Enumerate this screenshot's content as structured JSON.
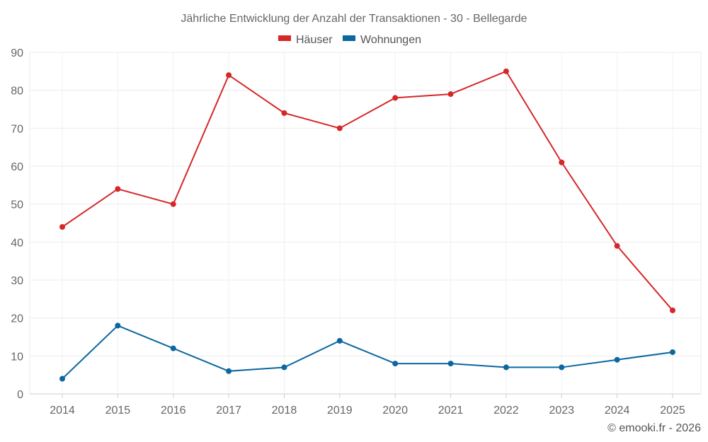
{
  "chart_data": {
    "type": "line",
    "title": "Jährliche Entwicklung der Anzahl der Transaktionen - 30 - Bellegarde",
    "x": [
      "2014",
      "2015",
      "2016",
      "2017",
      "2018",
      "2019",
      "2020",
      "2021",
      "2022",
      "2023",
      "2024",
      "2025"
    ],
    "series": [
      {
        "name": "Häuser",
        "color": "#d62728",
        "values": [
          44,
          54,
          50,
          84,
          74,
          70,
          78,
          79,
          85,
          61,
          39,
          22
        ]
      },
      {
        "name": "Wohnungen",
        "color": "#0b67a0",
        "values": [
          4,
          18,
          12,
          6,
          7,
          14,
          8,
          8,
          7,
          7,
          9,
          11
        ]
      }
    ],
    "ylim": [
      0,
      90
    ],
    "yticks": [
      0,
      10,
      20,
      30,
      40,
      50,
      60,
      70,
      80,
      90
    ],
    "xlabel": "",
    "ylabel": "",
    "grid": true,
    "legend_position": "top-center"
  },
  "credit": "© emooki.fr - 2026"
}
